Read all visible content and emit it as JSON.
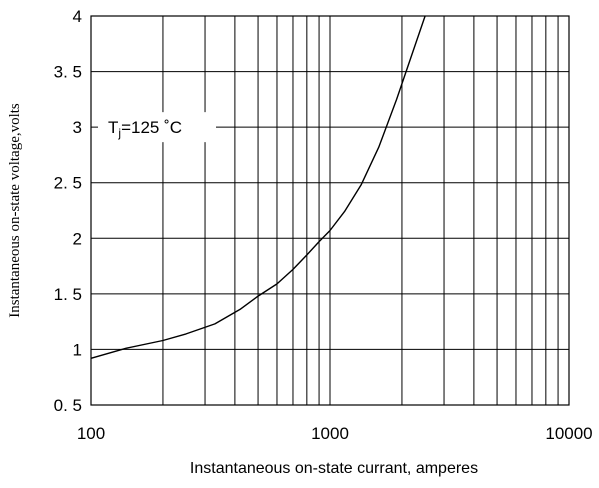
{
  "chart_data": {
    "type": "line",
    "xlabel": "Instantaneous on-state currant, amperes",
    "ylabel": "Instantaneous on-state voltage,volts",
    "x_scale": "log",
    "xlim": [
      100,
      10000
    ],
    "ylim": [
      0.5,
      4
    ],
    "x_ticks": [
      100,
      1000,
      10000
    ],
    "x_tick_labels": [
      "100",
      "1000",
      "10000"
    ],
    "y_ticks": [
      0.5,
      1,
      1.5,
      2,
      2.5,
      3,
      3.5,
      4
    ],
    "y_tick_labels": [
      "0. 5",
      "1",
      "1. 5",
      "2",
      "2. 5",
      "3",
      "3. 5",
      "4"
    ],
    "grid": true,
    "annotation": {
      "prefix": "T",
      "subscript": "j",
      "suffix": "=125 ˚C",
      "x": 180,
      "y": 3
    },
    "series": [
      {
        "x": [
          100,
          140,
          200,
          250,
          330,
          420,
          500,
          600,
          700,
          800,
          900,
          1000,
          1150,
          1350,
          1600,
          1900,
          2200,
          2500
        ],
        "y": [
          0.92,
          1.01,
          1.08,
          1.14,
          1.23,
          1.36,
          1.48,
          1.59,
          1.72,
          1.85,
          1.97,
          2.07,
          2.24,
          2.48,
          2.82,
          3.25,
          3.65,
          4.0
        ]
      }
    ]
  },
  "colors": {
    "axes": "#000000",
    "grid": "#000000",
    "line": "#000000",
    "background": "#ffffff"
  }
}
